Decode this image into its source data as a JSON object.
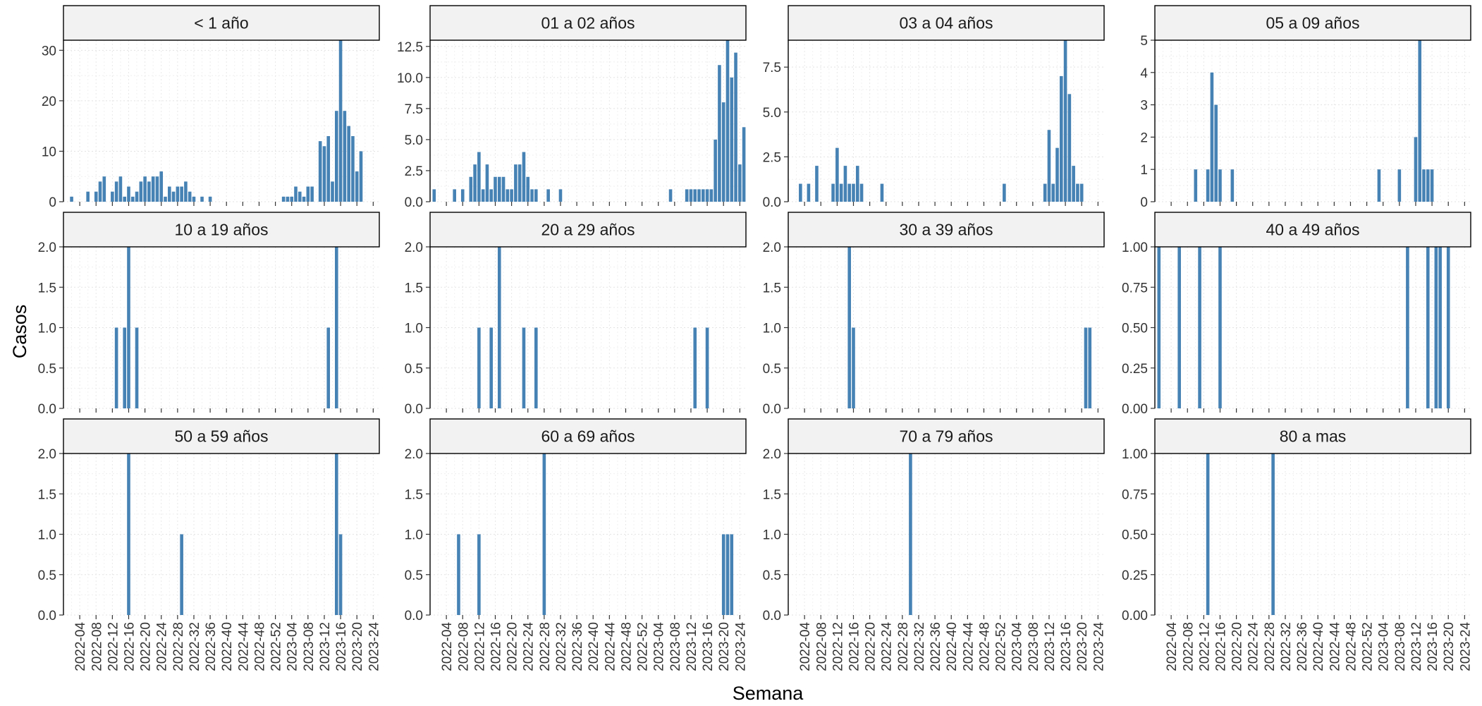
{
  "chart_data": {
    "type": "bar",
    "xlabel": "Semana",
    "ylabel": "Casos",
    "x_tick_labels": [
      "2022-04",
      "2022-08",
      "2022-12",
      "2022-16",
      "2022-20",
      "2022-24",
      "2022-28",
      "2022-32",
      "2022-36",
      "2022-40",
      "2022-44",
      "2022-48",
      "2022-52",
      "2023-04",
      "2023-08",
      "2023-12",
      "2023-16",
      "2023-20",
      "2023-24"
    ],
    "bar_color": "#4682b4",
    "grid": true,
    "facets": [
      {
        "name": "< 1 año",
        "ylim": [
          0,
          32
        ],
        "yticks": [
          "0",
          "10",
          "20",
          "30"
        ],
        "ytick_values": [
          0,
          10,
          20,
          30
        ],
        "bars": [
          [
            "2022-02",
            1
          ],
          [
            "2022-06",
            2
          ],
          [
            "2022-08",
            2
          ],
          [
            "2022-09",
            4
          ],
          [
            "2022-10",
            5
          ],
          [
            "2022-12",
            2
          ],
          [
            "2022-13",
            4
          ],
          [
            "2022-14",
            5
          ],
          [
            "2022-15",
            1
          ],
          [
            "2022-16",
            3
          ],
          [
            "2022-17",
            1
          ],
          [
            "2022-18",
            2
          ],
          [
            "2022-19",
            4
          ],
          [
            "2022-20",
            5
          ],
          [
            "2022-21",
            4
          ],
          [
            "2022-22",
            5
          ],
          [
            "2022-23",
            5
          ],
          [
            "2022-24",
            6
          ],
          [
            "2022-25",
            1
          ],
          [
            "2022-26",
            3
          ],
          [
            "2022-27",
            2
          ],
          [
            "2022-28",
            3
          ],
          [
            "2022-29",
            3
          ],
          [
            "2022-30",
            4
          ],
          [
            "2022-31",
            2
          ],
          [
            "2022-32",
            1
          ],
          [
            "2022-34",
            1
          ],
          [
            "2022-36",
            1
          ],
          [
            "2023-02",
            1
          ],
          [
            "2023-03",
            1
          ],
          [
            "2023-04",
            1
          ],
          [
            "2023-05",
            3
          ],
          [
            "2023-06",
            2
          ],
          [
            "2023-07",
            1
          ],
          [
            "2023-08",
            3
          ],
          [
            "2023-09",
            3
          ],
          [
            "2023-11",
            12
          ],
          [
            "2023-12",
            11
          ],
          [
            "2023-13",
            13
          ],
          [
            "2023-14",
            4
          ],
          [
            "2023-15",
            18
          ],
          [
            "2023-16",
            32
          ],
          [
            "2023-17",
            18
          ],
          [
            "2023-18",
            15
          ],
          [
            "2023-19",
            13
          ],
          [
            "2023-20",
            6
          ],
          [
            "2023-21",
            10
          ]
        ]
      },
      {
        "name": "01 a 02 años",
        "ylim": [
          0,
          13
        ],
        "yticks": [
          "0.0",
          "2.5",
          "5.0",
          "7.5",
          "10.0",
          "12.5"
        ],
        "ytick_values": [
          0,
          2.5,
          5,
          7.5,
          10,
          12.5
        ],
        "bars": [
          [
            "2022-01",
            1
          ],
          [
            "2022-06",
            1
          ],
          [
            "2022-08",
            1
          ],
          [
            "2022-10",
            2
          ],
          [
            "2022-11",
            3
          ],
          [
            "2022-12",
            4
          ],
          [
            "2022-13",
            1
          ],
          [
            "2022-14",
            3
          ],
          [
            "2022-15",
            1
          ],
          [
            "2022-16",
            2
          ],
          [
            "2022-17",
            2
          ],
          [
            "2022-18",
            2
          ],
          [
            "2022-19",
            1
          ],
          [
            "2022-20",
            1
          ],
          [
            "2022-21",
            3
          ],
          [
            "2022-22",
            3
          ],
          [
            "2022-23",
            4
          ],
          [
            "2022-24",
            2
          ],
          [
            "2022-25",
            1
          ],
          [
            "2022-26",
            1
          ],
          [
            "2022-29",
            1
          ],
          [
            "2022-32",
            1
          ],
          [
            "2023-07",
            1
          ],
          [
            "2023-11",
            1
          ],
          [
            "2023-12",
            1
          ],
          [
            "2023-13",
            1
          ],
          [
            "2023-14",
            1
          ],
          [
            "2023-15",
            1
          ],
          [
            "2023-16",
            1
          ],
          [
            "2023-17",
            1
          ],
          [
            "2023-18",
            5
          ],
          [
            "2023-19",
            11
          ],
          [
            "2023-20",
            8
          ],
          [
            "2023-21",
            13
          ],
          [
            "2023-22",
            10
          ],
          [
            "2023-23",
            12
          ],
          [
            "2023-24",
            3
          ],
          [
            "2023-25",
            6
          ]
        ]
      },
      {
        "name": "03 a 04 años",
        "ylim": [
          0,
          9
        ],
        "yticks": [
          "0.0",
          "2.5",
          "5.0",
          "7.5"
        ],
        "ytick_values": [
          0,
          2.5,
          5,
          7.5
        ],
        "bars": [
          [
            "2022-03",
            1
          ],
          [
            "2022-05",
            1
          ],
          [
            "2022-07",
            2
          ],
          [
            "2022-11",
            1
          ],
          [
            "2022-12",
            3
          ],
          [
            "2022-13",
            1
          ],
          [
            "2022-14",
            2
          ],
          [
            "2022-15",
            1
          ],
          [
            "2022-16",
            1
          ],
          [
            "2022-17",
            2
          ],
          [
            "2022-18",
            1
          ],
          [
            "2022-23",
            1
          ],
          [
            "2023-01",
            1
          ],
          [
            "2023-11",
            1
          ],
          [
            "2023-12",
            4
          ],
          [
            "2023-13",
            1
          ],
          [
            "2023-14",
            3
          ],
          [
            "2023-15",
            7
          ],
          [
            "2023-16",
            9
          ],
          [
            "2023-17",
            6
          ],
          [
            "2023-18",
            2
          ],
          [
            "2023-19",
            1
          ],
          [
            "2023-20",
            1
          ]
        ]
      },
      {
        "name": "05 a 09 años",
        "ylim": [
          0,
          5
        ],
        "yticks": [
          "0",
          "1",
          "2",
          "3",
          "4",
          "5"
        ],
        "ytick_values": [
          0,
          1,
          2,
          3,
          4,
          5
        ],
        "bars": [
          [
            "2022-10",
            1
          ],
          [
            "2022-13",
            1
          ],
          [
            "2022-14",
            4
          ],
          [
            "2022-15",
            3
          ],
          [
            "2022-16",
            1
          ],
          [
            "2022-19",
            1
          ],
          [
            "2023-03",
            1
          ],
          [
            "2023-08",
            1
          ],
          [
            "2023-12",
            2
          ],
          [
            "2023-13",
            5
          ],
          [
            "2023-14",
            1
          ],
          [
            "2023-15",
            1
          ],
          [
            "2023-16",
            1
          ]
        ]
      },
      {
        "name": "10 a 19 años",
        "ylim": [
          0,
          2
        ],
        "yticks": [
          "0.0",
          "0.5",
          "1.0",
          "1.5",
          "2.0"
        ],
        "ytick_values": [
          0,
          0.5,
          1,
          1.5,
          2
        ],
        "bars": [
          [
            "2022-13",
            1
          ],
          [
            "2022-15",
            1
          ],
          [
            "2022-16",
            2
          ],
          [
            "2022-18",
            1
          ],
          [
            "2023-13",
            1
          ],
          [
            "2023-15",
            2
          ]
        ]
      },
      {
        "name": "20 a 29 años",
        "ylim": [
          0,
          2
        ],
        "yticks": [
          "0.0",
          "0.5",
          "1.0",
          "1.5",
          "2.0"
        ],
        "ytick_values": [
          0,
          0.5,
          1,
          1.5,
          2
        ],
        "bars": [
          [
            "2022-12",
            1
          ],
          [
            "2022-15",
            1
          ],
          [
            "2022-17",
            2
          ],
          [
            "2022-23",
            1
          ],
          [
            "2022-26",
            1
          ],
          [
            "2023-13",
            1
          ],
          [
            "2023-16",
            1
          ]
        ]
      },
      {
        "name": "30 a 39 años",
        "ylim": [
          0,
          2
        ],
        "yticks": [
          "0.0",
          "0.5",
          "1.0",
          "1.5",
          "2.0"
        ],
        "ytick_values": [
          0,
          0.5,
          1,
          1.5,
          2
        ],
        "bars": [
          [
            "2022-15",
            2
          ],
          [
            "2022-16",
            1
          ],
          [
            "2023-21",
            1
          ],
          [
            "2023-22",
            1
          ]
        ]
      },
      {
        "name": "40 a 49 años",
        "ylim": [
          0,
          1
        ],
        "yticks": [
          "0.00",
          "0.25",
          "0.50",
          "0.75",
          "1.00"
        ],
        "ytick_values": [
          0,
          0.25,
          0.5,
          0.75,
          1
        ],
        "bars": [
          [
            "2022-01",
            1
          ],
          [
            "2022-06",
            1
          ],
          [
            "2022-11",
            1
          ],
          [
            "2022-16",
            1
          ],
          [
            "2023-10",
            1
          ],
          [
            "2023-15",
            1
          ],
          [
            "2023-17",
            1
          ],
          [
            "2023-18",
            1
          ],
          [
            "2023-20",
            1
          ]
        ]
      },
      {
        "name": "50 a 59 años",
        "ylim": [
          0,
          2
        ],
        "yticks": [
          "0.0",
          "0.5",
          "1.0",
          "1.5",
          "2.0"
        ],
        "ytick_values": [
          0,
          0.5,
          1,
          1.5,
          2
        ],
        "bars": [
          [
            "2022-16",
            2
          ],
          [
            "2022-29",
            1
          ],
          [
            "2023-15",
            2
          ],
          [
            "2023-16",
            1
          ]
        ]
      },
      {
        "name": "60 a 69 años",
        "ylim": [
          0,
          2
        ],
        "yticks": [
          "0.0",
          "0.5",
          "1.0",
          "1.5",
          "2.0"
        ],
        "ytick_values": [
          0,
          0.5,
          1,
          1.5,
          2
        ],
        "bars": [
          [
            "2022-07",
            1
          ],
          [
            "2022-12",
            1
          ],
          [
            "2022-28",
            2
          ],
          [
            "2023-20",
            1
          ],
          [
            "2023-21",
            1
          ],
          [
            "2023-22",
            1
          ]
        ]
      },
      {
        "name": "70 a 79 años",
        "ylim": [
          0,
          2
        ],
        "yticks": [
          "0.0",
          "0.5",
          "1.0",
          "1.5",
          "2.0"
        ],
        "ytick_values": [
          0,
          0.5,
          1,
          1.5,
          2
        ],
        "bars": [
          [
            "2022-30",
            2
          ]
        ]
      },
      {
        "name": "80 a mas",
        "ylim": [
          0,
          1
        ],
        "yticks": [
          "0.00",
          "0.25",
          "0.50",
          "0.75",
          "1.00"
        ],
        "ytick_values": [
          0,
          0.25,
          0.5,
          0.75,
          1
        ],
        "bars": [
          [
            "2022-13",
            1
          ],
          [
            "2022-29",
            1
          ]
        ]
      }
    ]
  }
}
